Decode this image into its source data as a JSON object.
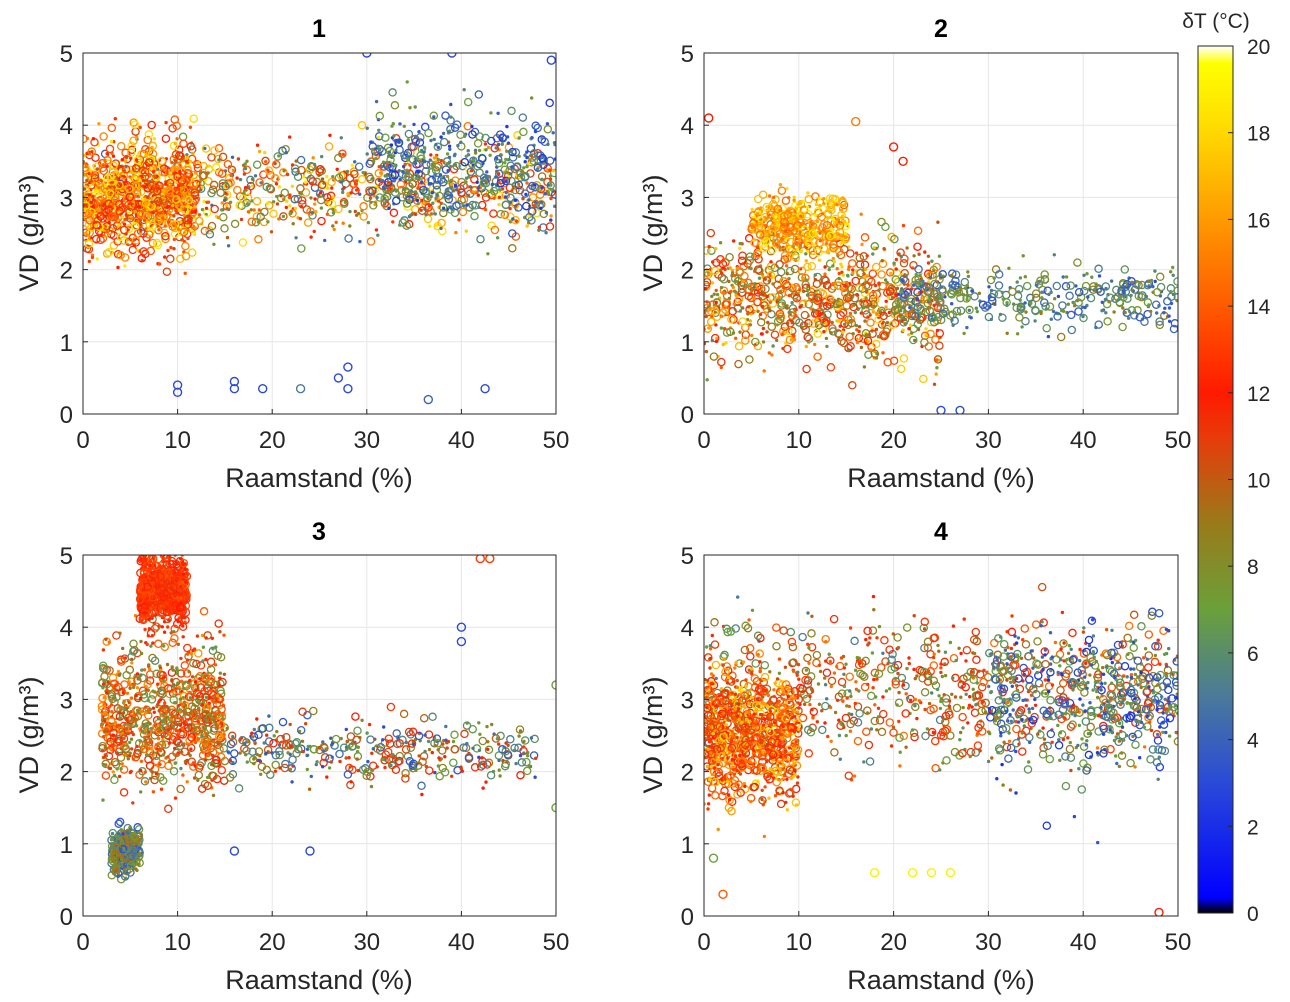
{
  "chart_data": [
    {
      "type": "scatter",
      "title": "1",
      "xlabel": "Raamstand (%)",
      "ylabel": "VD (g/m³)",
      "xlim": [
        0,
        50
      ],
      "ylim": [
        0,
        5
      ],
      "xticks": [
        0,
        10,
        20,
        30,
        40,
        50
      ],
      "yticks": [
        0,
        1,
        2,
        3,
        4,
        5
      ],
      "grid": true,
      "color_variable": "δT (°C)",
      "clusters": [
        {
          "x_range": [
            0,
            50
          ],
          "y_mean": 3.1,
          "y_spread": 0.6,
          "dT_range": [
            4,
            19
          ],
          "density": "high"
        },
        {
          "x_range": [
            0,
            12
          ],
          "y_mean": 3.0,
          "y_spread": 0.7,
          "dT_range": [
            10,
            19
          ],
          "density": "high"
        },
        {
          "x_range": [
            30,
            50
          ],
          "y_mean": 3.5,
          "y_spread": 0.7,
          "dT_range": [
            2,
            8
          ],
          "density": "medium"
        }
      ],
      "outliers": [
        {
          "x": 10,
          "y": 0.3,
          "dT": 3
        },
        {
          "x": 10,
          "y": 0.4,
          "dT": 3
        },
        {
          "x": 16,
          "y": 0.45,
          "dT": 3
        },
        {
          "x": 16,
          "y": 0.35,
          "dT": 3
        },
        {
          "x": 19,
          "y": 0.35,
          "dT": 3
        },
        {
          "x": 23,
          "y": 0.35,
          "dT": 5
        },
        {
          "x": 27,
          "y": 0.5,
          "dT": 3
        },
        {
          "x": 28,
          "y": 0.65,
          "dT": 3
        },
        {
          "x": 28,
          "y": 0.35,
          "dT": 3
        },
        {
          "x": 36.5,
          "y": 0.2,
          "dT": 4
        },
        {
          "x": 42.5,
          "y": 0.35,
          "dT": 3
        },
        {
          "x": 39,
          "y": 5.0,
          "dT": 3
        },
        {
          "x": 49.5,
          "y": 4.9,
          "dT": 3
        },
        {
          "x": 30,
          "y": 5.0,
          "dT": 3
        }
      ]
    },
    {
      "type": "scatter",
      "title": "2",
      "xlabel": "Raamstand (%)",
      "ylabel": "VD (g/m³)",
      "xlim": [
        0,
        50
      ],
      "ylim": [
        0,
        5
      ],
      "xticks": [
        0,
        10,
        20,
        30,
        40,
        50
      ],
      "yticks": [
        0,
        1,
        2,
        3,
        4,
        5
      ],
      "grid": true,
      "color_variable": "δT (°C)",
      "clusters": [
        {
          "x_range": [
            0,
            25
          ],
          "y_mean": 1.6,
          "y_spread": 0.8,
          "dT_range": [
            6,
            18
          ],
          "density": "high"
        },
        {
          "x_range": [
            5,
            15
          ],
          "y_mean": 2.6,
          "y_spread": 0.4,
          "dT_range": [
            14,
            19
          ],
          "density": "medium"
        },
        {
          "x_range": [
            20,
            50
          ],
          "y_mean": 1.6,
          "y_spread": 0.4,
          "dT_range": [
            3,
            9
          ],
          "density": "medium"
        }
      ],
      "outliers": [
        {
          "x": 0.5,
          "y": 4.1,
          "dT": 12
        },
        {
          "x": 16,
          "y": 4.05,
          "dT": 15
        },
        {
          "x": 20,
          "y": 3.7,
          "dT": 12
        },
        {
          "x": 21,
          "y": 3.5,
          "dT": 12
        },
        {
          "x": 25,
          "y": 0.05,
          "dT": 3
        },
        {
          "x": 27,
          "y": 0.05,
          "dT": 3
        }
      ]
    },
    {
      "type": "scatter",
      "title": "3",
      "xlabel": "Raamstand (%)",
      "ylabel": "VD (g/m³)",
      "xlim": [
        0,
        50
      ],
      "ylim": [
        0,
        5
      ],
      "xticks": [
        0,
        10,
        20,
        30,
        40,
        50
      ],
      "yticks": [
        0,
        1,
        2,
        3,
        4,
        5
      ],
      "grid": true,
      "color_variable": "δT (°C)",
      "clusters": [
        {
          "x_range": [
            2,
            15
          ],
          "y_mean": 2.8,
          "y_spread": 0.9,
          "dT_range": [
            6,
            16
          ],
          "density": "high"
        },
        {
          "x_range": [
            6,
            11
          ],
          "y_mean": 4.5,
          "y_spread": 0.4,
          "dT_range": [
            11,
            14
          ],
          "density": "high"
        },
        {
          "x_range": [
            3,
            6
          ],
          "y_mean": 0.9,
          "y_spread": 0.3,
          "dT_range": [
            3,
            10
          ],
          "density": "medium"
        },
        {
          "x_range": [
            15,
            48
          ],
          "y_mean": 2.3,
          "y_spread": 0.4,
          "dT_range": [
            3,
            13
          ],
          "density": "medium"
        }
      ],
      "outliers": [
        {
          "x": 42,
          "y": 4.95,
          "dT": 13
        },
        {
          "x": 43,
          "y": 4.95,
          "dT": 13
        },
        {
          "x": 40,
          "y": 3.8,
          "dT": 3
        },
        {
          "x": 40,
          "y": 4.0,
          "dT": 3
        },
        {
          "x": 24,
          "y": 0.9,
          "dT": 3
        },
        {
          "x": 16,
          "y": 0.9,
          "dT": 3
        },
        {
          "x": 50,
          "y": 1.5,
          "dT": 7
        },
        {
          "x": 50,
          "y": 3.2,
          "dT": 7
        }
      ]
    },
    {
      "type": "scatter",
      "title": "4",
      "xlabel": "Raamstand (%)",
      "ylabel": "VD (g/m³)",
      "xlim": [
        0,
        50
      ],
      "ylim": [
        0,
        5
      ],
      "xticks": [
        0,
        10,
        20,
        30,
        40,
        50
      ],
      "yticks": [
        0,
        1,
        2,
        3,
        4,
        5
      ],
      "grid": true,
      "color_variable": "δT (°C)",
      "clusters": [
        {
          "x_range": [
            0,
            50
          ],
          "y_mean": 3.1,
          "y_spread": 0.9,
          "dT_range": [
            5,
            15
          ],
          "density": "high"
        },
        {
          "x_range": [
            0,
            10
          ],
          "y_mean": 2.5,
          "y_spread": 0.8,
          "dT_range": [
            10,
            18
          ],
          "density": "high"
        },
        {
          "x_range": [
            30,
            50
          ],
          "y_mean": 3.0,
          "y_spread": 1.0,
          "dT_range": [
            2,
            8
          ],
          "density": "medium"
        }
      ],
      "outliers": [
        {
          "x": 18,
          "y": 0.6,
          "dT": 19
        },
        {
          "x": 22,
          "y": 0.6,
          "dT": 19
        },
        {
          "x": 24,
          "y": 0.6,
          "dT": 19
        },
        {
          "x": 26,
          "y": 0.6,
          "dT": 19
        },
        {
          "x": 2,
          "y": 0.3,
          "dT": 14
        },
        {
          "x": 48,
          "y": 0.05,
          "dT": 12
        },
        {
          "x": 1,
          "y": 0.8,
          "dT": 7
        }
      ]
    }
  ],
  "colorbar": {
    "label": "δT (°C)",
    "min": 0,
    "max": 20,
    "ticks": [
      0,
      2,
      4,
      6,
      8,
      10,
      12,
      14,
      16,
      18,
      20
    ],
    "colors": [
      {
        "v": 0,
        "c": "#000000"
      },
      {
        "v": 0.35,
        "c": "#0000ff"
      },
      {
        "v": 3,
        "c": "#2a4ad8"
      },
      {
        "v": 5,
        "c": "#4a7a9a"
      },
      {
        "v": 7,
        "c": "#6aa03a"
      },
      {
        "v": 9,
        "c": "#9a7a1a"
      },
      {
        "v": 11,
        "c": "#e83a0a"
      },
      {
        "v": 12,
        "c": "#ff1a00"
      },
      {
        "v": 14,
        "c": "#ff5a00"
      },
      {
        "v": 16,
        "c": "#ff9a00"
      },
      {
        "v": 18,
        "c": "#ffd800"
      },
      {
        "v": 19.6,
        "c": "#ffff00"
      },
      {
        "v": 20,
        "c": "#ffffff"
      }
    ]
  },
  "style": {
    "grid_color": "#e6e6e6",
    "axis_color": "#262626",
    "background": "#ffffff"
  }
}
